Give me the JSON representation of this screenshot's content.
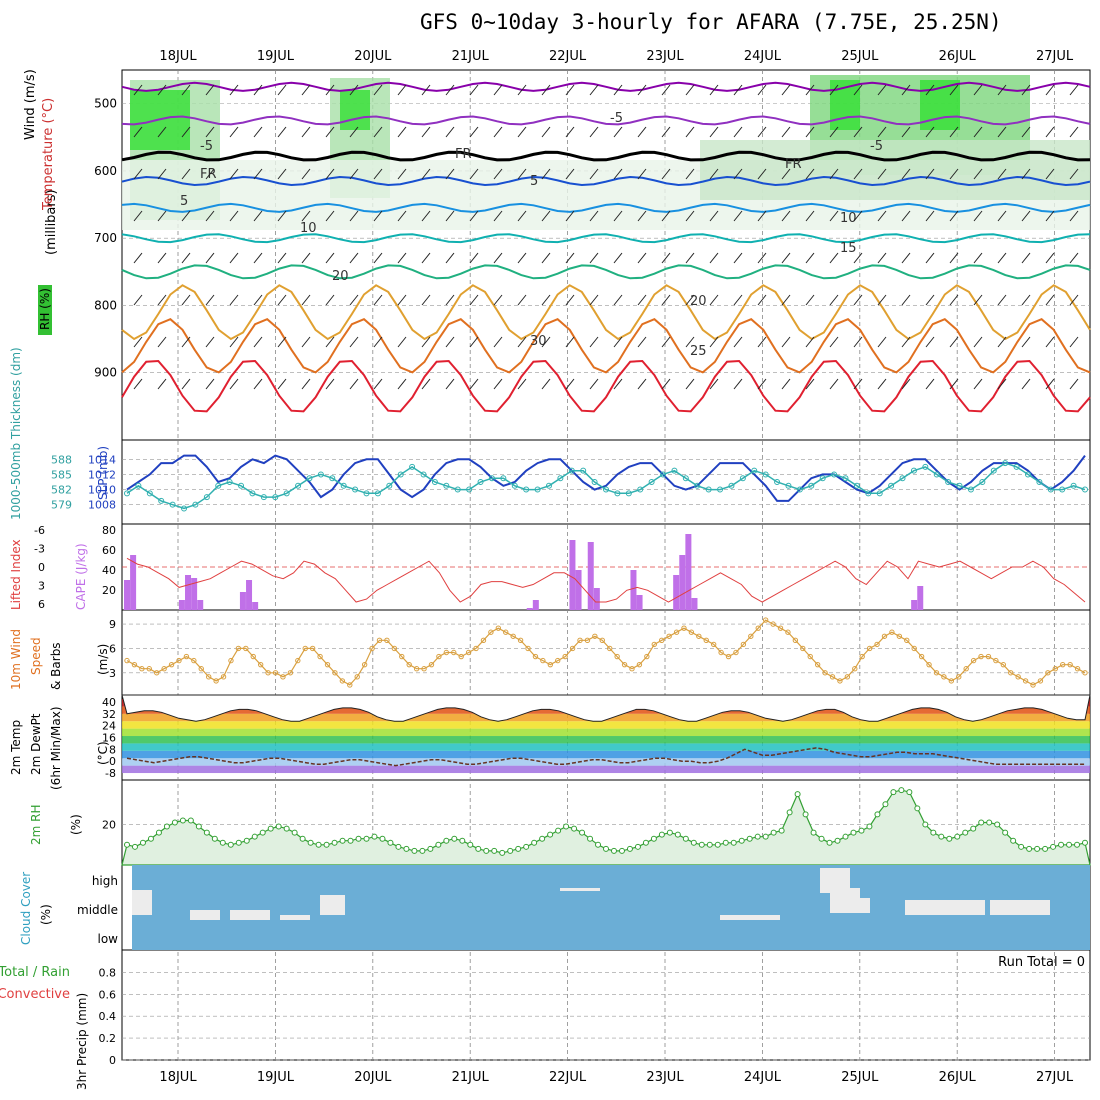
{
  "title": "GFS 0~10day 3-hourly for AFARA (7.75E, 25.25N)",
  "dates": [
    "18JUL",
    "19JUL",
    "20JUL",
    "21JUL",
    "22JUL",
    "23JUL",
    "24JUL",
    "25JUL",
    "26JUL",
    "27JUL"
  ],
  "colors": {
    "temp_main": "#e8702a",
    "wind_dir": "#d9a040",
    "slp": "#2040c0",
    "thickness": "#30b0b0",
    "rh": "#33a033",
    "cloud": "#6baed6",
    "cape": "#c070e8",
    "li": "#e04040"
  },
  "chart_data": [
    {
      "panel": "upper-air",
      "type": "heatmap",
      "ylabel_parts": [
        "RH (%)",
        "Temperature",
        "(°C)",
        "Wind",
        "(m/s)"
      ],
      "ylabel_side": "(millibars)",
      "ylim": [
        1000,
        450
      ],
      "y_ticks": [
        "500",
        "600",
        "700",
        "800",
        "900"
      ],
      "contour_labels": [
        "-5",
        "-5",
        "-5",
        "FR",
        "FR",
        "FR",
        "5",
        "5",
        "10",
        "10",
        "15",
        "20",
        "20",
        "25",
        "30",
        "30",
        "30",
        "30"
      ],
      "isotherms": [
        {
          "temp": -10,
          "base_mb": 475
        },
        {
          "temp": -5,
          "base_mb": 525
        },
        {
          "temp": 0,
          "base_mb": 578
        },
        {
          "temp": 5,
          "base_mb": 615
        },
        {
          "temp": 10,
          "base_mb": 655
        },
        {
          "temp": 15,
          "base_mb": 700
        },
        {
          "temp": 20,
          "base_mb": 750
        },
        {
          "temp": 25,
          "base_mb": 810
        },
        {
          "temp": 30,
          "base_mb": 860
        },
        {
          "temp": 35,
          "base_mb": 920
        }
      ]
    },
    {
      "panel": "slp-thickness",
      "type": "line",
      "ylabel_left": "1000-500mb Thickness (dm)",
      "ylabel_right": "SLP (mb)",
      "left_ticks": [
        "588",
        "585",
        "582",
        "579"
      ],
      "right_ticks": [
        "1014",
        "1012",
        "1010",
        "1008"
      ],
      "ylim": [
        1006.5,
        1015.5
      ],
      "series": [
        {
          "name": "SLP (mb)",
          "values": [
            1010,
            1011,
            1012,
            1013.5,
            1013.5,
            1014.5,
            1014.5,
            1013,
            1011,
            1011.5,
            1013,
            1014,
            1013.5,
            1014.5,
            1014,
            1012.5,
            1011,
            1009,
            1010,
            1012,
            1013.5,
            1014,
            1014,
            1012,
            1010,
            1009,
            1010,
            1012,
            1013.5,
            1014,
            1014,
            1013,
            1011.5,
            1010.5,
            1011,
            1012.5,
            1013.5,
            1014,
            1014,
            1012.5,
            1011,
            1010,
            1010.5,
            1012,
            1013,
            1013.5,
            1013.5,
            1012,
            1010.5,
            1010,
            1010.5,
            1012,
            1013.5,
            1013.5,
            1013.5,
            1012,
            1010.5,
            1008.5,
            1008.5,
            1010,
            1011.5,
            1012,
            1012,
            1011,
            1010,
            1009.5,
            1010.5,
            1012,
            1013.5,
            1014,
            1014,
            1012.5,
            1011,
            1010,
            1011,
            1012.5,
            1013.5,
            1013.5,
            1013.5,
            1012.5,
            1011,
            1010,
            1011,
            1012.5,
            1014.5
          ]
        },
        {
          "name": "Thickness (dm)",
          "values": [
            1009.5,
            1010.5,
            1009.5,
            1008.5,
            1008,
            1007.5,
            1008,
            1009,
            1010.5,
            1011,
            1010.5,
            1009.5,
            1009,
            1009,
            1009.5,
            1010.5,
            1011.5,
            1012,
            1011.5,
            1010.5,
            1010,
            1009.5,
            1009.5,
            1010.5,
            1012,
            1013,
            1012,
            1011,
            1010.5,
            1010,
            1010,
            1011,
            1011.5,
            1011.5,
            1010.5,
            1010,
            1010,
            1010.5,
            1011.5,
            1012.5,
            1012.5,
            1011,
            1010,
            1009.5,
            1009.5,
            1010,
            1011,
            1012,
            1012.5,
            1011.5,
            1010.5,
            1010,
            1010,
            1010.5,
            1011.5,
            1012.5,
            1012,
            1011,
            1010.5,
            1010,
            1010.5,
            1011.5,
            1012,
            1011.5,
            1010.5,
            1009.5,
            1009.5,
            1010.5,
            1011.5,
            1012.5,
            1013,
            1012,
            1011,
            1010.5,
            1010,
            1011,
            1012.5,
            1013.5,
            1013,
            1012,
            1011,
            1010,
            1010,
            1010.5,
            1010
          ]
        }
      ]
    },
    {
      "panel": "cape-li",
      "type": "bar",
      "ylabel_left_a": "Lifted Index",
      "ylabel_left_b": "CAPE (J/kg)",
      "li_ticks": [
        "-6",
        "-3",
        "0",
        "3",
        "6"
      ],
      "cape_ticks": [
        "80",
        "60",
        "40",
        "20"
      ],
      "ylim": [
        0,
        80
      ],
      "series": [
        {
          "name": "CAPE (J/kg)",
          "values": [
            30,
            55,
            0,
            0,
            0,
            0,
            0,
            0,
            0,
            10,
            35,
            32,
            10,
            0,
            0,
            0,
            0,
            0,
            0,
            18,
            30,
            8,
            0,
            0,
            0,
            0,
            0,
            0,
            0,
            0,
            0,
            0,
            0,
            0,
            0,
            0,
            0,
            0,
            0,
            0,
            0,
            0,
            0,
            0,
            0,
            0,
            0,
            0,
            0,
            0,
            0,
            0,
            0,
            0,
            0,
            0,
            0,
            0,
            0,
            0,
            0,
            0,
            0,
            0,
            0,
            0,
            2,
            10,
            0,
            0,
            0,
            0,
            0,
            70,
            40,
            0,
            68,
            22,
            0,
            0,
            0,
            0,
            0,
            40,
            15,
            0,
            0,
            0,
            0,
            0,
            35,
            55,
            76,
            12,
            0,
            0,
            0,
            0,
            0,
            0,
            0,
            0,
            0,
            0,
            0,
            0,
            0,
            0,
            0,
            0,
            0,
            0,
            0,
            0,
            0,
            0,
            0,
            0,
            0,
            0,
            0,
            0,
            0,
            0,
            0,
            0,
            0,
            0,
            0,
            10,
            24,
            0,
            0,
            0,
            0,
            0,
            0,
            0,
            0,
            0,
            0,
            0,
            0,
            0,
            0,
            0,
            0,
            0,
            0,
            0,
            0,
            0,
            0,
            0,
            0,
            0,
            0,
            0
          ]
        },
        {
          "name": "Lifted Index",
          "values": [
            -1.5,
            -0.5,
            0,
            1,
            2,
            3.5,
            3,
            2.5,
            2,
            1,
            0,
            -1,
            -0.5,
            0.5,
            1.5,
            2,
            1,
            -1,
            -0.5,
            1,
            2,
            4,
            6,
            5.5,
            4,
            3,
            2,
            1,
            0,
            -1,
            1,
            4,
            6,
            5,
            3,
            2.5,
            2.5,
            3,
            3.5,
            3,
            2,
            1,
            1,
            2,
            4,
            6,
            6,
            5.5,
            4,
            3.5,
            4,
            5,
            6,
            5,
            4,
            3,
            2,
            1,
            2,
            3,
            5,
            6,
            5,
            4,
            3,
            2,
            1,
            0,
            -1,
            0,
            2,
            3,
            1,
            -1,
            0,
            2,
            -1,
            -0.5,
            0,
            -0.5,
            -1,
            0,
            1,
            2,
            1,
            0,
            0,
            -1,
            0,
            2,
            3,
            4.5,
            6
          ]
        }
      ]
    },
    {
      "panel": "wind10m",
      "type": "line",
      "ylabel_a": "10m Wind",
      "ylabel_b": "Speed",
      "ylabel_c": "& Barbs",
      "ylabel_unit": "(m/s)",
      "ticks": [
        "9",
        "6",
        "3"
      ],
      "ylim": [
        1,
        10
      ],
      "series": [
        {
          "name": "10m Wind Speed",
          "values": [
            4.5,
            4,
            3.5,
            3.5,
            3,
            3.5,
            4,
            4.5,
            5,
            4.5,
            3.5,
            2.5,
            2,
            2.5,
            4.5,
            6,
            6,
            5,
            4,
            3,
            3,
            2.5,
            3,
            4.5,
            6,
            6,
            5,
            4,
            3,
            2,
            1.5,
            2.5,
            4,
            6,
            7,
            7,
            6,
            5,
            4,
            3.5,
            3.5,
            4,
            5,
            5.5,
            5.5,
            5,
            5.5,
            6,
            7,
            8,
            8.5,
            8,
            7.5,
            7,
            6,
            5,
            4.5,
            4,
            4.5,
            5,
            6,
            7,
            7,
            7.5,
            7,
            6,
            5,
            4,
            3.5,
            4,
            5,
            6.5,
            7,
            7.5,
            8,
            8.5,
            8,
            7.5,
            7,
            6.5,
            5.5,
            5,
            5.5,
            6.5,
            7.5,
            8.5,
            9.5,
            9,
            8.5,
            8,
            7,
            6,
            5,
            4,
            3,
            2.5,
            2,
            2.5,
            3.5,
            5,
            6,
            6.5,
            7.5,
            8,
            7.5,
            7,
            6,
            5,
            4,
            3,
            2.5,
            2,
            2.5,
            3.5,
            4.5,
            5,
            5,
            4.5,
            4,
            3,
            2.5,
            2,
            1.5,
            2,
            3,
            3.5,
            4,
            4,
            3.5,
            3
          ]
        }
      ]
    },
    {
      "panel": "temp2m",
      "type": "area",
      "ylabel_a": "2m Temp",
      "ylabel_b": "2m DewPt",
      "ylabel_c": "(6hr Min/Max)",
      "ylabel_unit": "(°C)",
      "ticks": [
        "40",
        "32",
        "24",
        "16",
        "8",
        "0",
        "-8"
      ],
      "ylim": [
        -10,
        42
      ],
      "series": [
        {
          "name": "2m Temp",
          "values": [
            32,
            33,
            34,
            34,
            33,
            31,
            29,
            28,
            27,
            28,
            30,
            32,
            34,
            35,
            35,
            34,
            32,
            30,
            28,
            27,
            27,
            29,
            31,
            33,
            35,
            36,
            36,
            35,
            33,
            30,
            28,
            27,
            27,
            29,
            31,
            33,
            35,
            36,
            36,
            35,
            33,
            30,
            28,
            27,
            28,
            30,
            32,
            34,
            35,
            35,
            34,
            32,
            30,
            28,
            27,
            27,
            29,
            31,
            33,
            35,
            35,
            34,
            32,
            30,
            28,
            27,
            27,
            29,
            31,
            33,
            34,
            34,
            33,
            31,
            29,
            28,
            27,
            28,
            30,
            32,
            34,
            35,
            35,
            33,
            30,
            28,
            27,
            27,
            29,
            31,
            33,
            35,
            36,
            36,
            35,
            33,
            30,
            28,
            27,
            28,
            30,
            32,
            34,
            35,
            36,
            36,
            35,
            33,
            31,
            29,
            28,
            28
          ]
        },
        {
          "name": "2m DewPt",
          "values": [
            2,
            1,
            0,
            -1,
            0,
            1,
            2,
            3,
            3,
            2,
            1,
            0,
            -1,
            -1,
            0,
            1,
            2,
            2,
            1,
            0,
            -1,
            -2,
            -2,
            -1,
            0,
            1,
            1,
            0,
            -1,
            -2,
            -3,
            -2,
            -1,
            0,
            1,
            1,
            0,
            -1,
            -2,
            -2,
            -1,
            0,
            1,
            2,
            2,
            1,
            0,
            -1,
            -2,
            -2,
            -1,
            0,
            1,
            1,
            0,
            -1,
            -1,
            0,
            1,
            2,
            2,
            1,
            0,
            0,
            -1,
            -1,
            0,
            2,
            5,
            8,
            6,
            4,
            4,
            5,
            6,
            7,
            8,
            9,
            8,
            6,
            5,
            4,
            3,
            3,
            4,
            5,
            6,
            6,
            5,
            5,
            5,
            4,
            3,
            2,
            1,
            0,
            -1,
            -2,
            -2,
            -2,
            -2,
            -2,
            -2,
            -2,
            -2,
            -2,
            -2,
            -2
          ]
        }
      ]
    },
    {
      "panel": "rh2m",
      "type": "area",
      "ylabel": "2m RH",
      "ylabel_unit": "(%)",
      "ticks": [
        "20"
      ],
      "ylim": [
        2,
        40
      ],
      "series": [
        {
          "name": "2m RH",
          "values": [
            10,
            9,
            11,
            13,
            16,
            19,
            21,
            22,
            22,
            19,
            16,
            13,
            11,
            10,
            11,
            12,
            14,
            16,
            18,
            19,
            18,
            16,
            13,
            11,
            10,
            10,
            11,
            12,
            12,
            13,
            13,
            14,
            13,
            11,
            9,
            8,
            7,
            7,
            8,
            10,
            12,
            13,
            12,
            10,
            8,
            7,
            7,
            6,
            7,
            8,
            9,
            11,
            13,
            15,
            17,
            19,
            18,
            16,
            13,
            10,
            8,
            7,
            7,
            8,
            9,
            11,
            13,
            15,
            16,
            15,
            13,
            11,
            10,
            10,
            10,
            11,
            11,
            12,
            13,
            14,
            14,
            16,
            17,
            26,
            35,
            25,
            16,
            13,
            11,
            12,
            14,
            16,
            17,
            19,
            25,
            30,
            36,
            37,
            36,
            28,
            20,
            16,
            14,
            13,
            14,
            16,
            18,
            21,
            21,
            20,
            16,
            12,
            9,
            8,
            8,
            8,
            9,
            10,
            10,
            10,
            11
          ]
        }
      ]
    },
    {
      "panel": "cloud",
      "type": "bar",
      "ylabel_a": "Cloud Cover",
      "ylabel_b": "(%)",
      "tick_labels": [
        "high",
        "middle",
        "low"
      ]
    },
    {
      "panel": "precip",
      "type": "bar",
      "ylabel_a": "3hr Precip (mm)",
      "ylabel_b": "Total / Rain",
      "ylabel_c": "Convective",
      "run_total": "Run Total = 0",
      "ticks": [
        "0.8",
        "0.6",
        "0.4",
        "0.2",
        "0"
      ],
      "ylim": [
        0,
        0.95
      ],
      "series": [
        {
          "name": "3hr Precip",
          "values": []
        }
      ]
    }
  ]
}
